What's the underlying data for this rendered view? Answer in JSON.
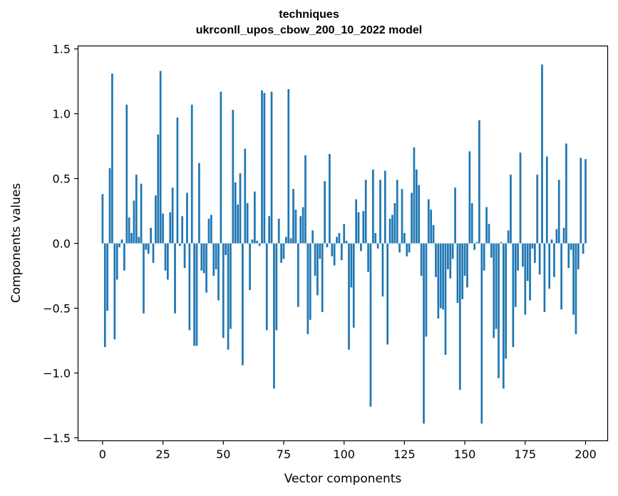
{
  "chart_data": {
    "type": "bar",
    "title": "techniques",
    "subtitle": "ukrconll_upos_cbow_200_10_2022 model",
    "xlabel": "Vector components",
    "ylabel": "Components values",
    "xlim": [
      -10,
      209
    ],
    "ylim": [
      -1.52,
      1.52
    ],
    "xticks": [
      0,
      25,
      50,
      75,
      100,
      125,
      150,
      175,
      200
    ],
    "yticks": [
      -1.5,
      -1.0,
      -0.5,
      0.0,
      0.5,
      1.0,
      1.5
    ],
    "xtick_labels": [
      "0",
      "25",
      "50",
      "75",
      "100",
      "125",
      "150",
      "175",
      "200"
    ],
    "ytick_labels": [
      "−1.5",
      "−1.0",
      "−0.5",
      "0.0",
      "0.5",
      "1.0",
      "1.5"
    ],
    "bar_color": "#1f77b4",
    "grid": false,
    "legend": "none",
    "values": [
      0.38,
      -0.8,
      -0.52,
      0.58,
      1.31,
      -0.74,
      -0.28,
      -0.03,
      0.03,
      -0.21,
      1.07,
      0.2,
      0.08,
      0.33,
      0.53,
      0.05,
      0.46,
      -0.54,
      -0.05,
      -0.08,
      0.12,
      -0.15,
      0.37,
      0.84,
      1.33,
      0.23,
      -0.21,
      -0.28,
      0.24,
      0.43,
      -0.54,
      0.97,
      -0.02,
      0.21,
      -0.19,
      0.39,
      -0.67,
      1.07,
      -0.79,
      -0.79,
      0.62,
      -0.21,
      -0.23,
      -0.38,
      0.19,
      0.22,
      -0.25,
      -0.2,
      -0.44,
      1.17,
      -0.73,
      -0.09,
      -0.82,
      -0.66,
      1.03,
      0.47,
      0.3,
      0.54,
      -0.94,
      0.73,
      0.31,
      -0.36,
      0.03,
      0.4,
      0.02,
      -0.02,
      1.18,
      1.16,
      -0.67,
      0.21,
      1.17,
      -1.12,
      -0.67,
      0.19,
      -0.15,
      -0.12,
      0.05,
      1.19,
      0.04,
      0.42,
      0.26,
      -0.49,
      0.21,
      0.28,
      0.68,
      -0.7,
      -0.59,
      0.1,
      -0.25,
      -0.4,
      -0.12,
      -0.53,
      0.48,
      -0.03,
      0.69,
      -0.1,
      -0.17,
      0.05,
      0.08,
      -0.13,
      0.15,
      0.02,
      -0.82,
      -0.34,
      -0.65,
      0.34,
      0.24,
      -0.06,
      0.25,
      0.49,
      -0.22,
      -1.26,
      0.57,
      0.08,
      -0.04,
      0.49,
      -0.41,
      0.56,
      -0.78,
      0.19,
      0.22,
      0.31,
      0.49,
      -0.07,
      0.42,
      0.08,
      -0.1,
      -0.07,
      0.39,
      0.74,
      0.57,
      0.45,
      -0.25,
      -1.39,
      -0.72,
      0.34,
      0.26,
      0.14,
      -0.26,
      -0.58,
      -0.5,
      -0.51,
      -0.86,
      -0.2,
      -0.27,
      -0.12,
      0.43,
      -0.46,
      -1.13,
      -0.43,
      -0.25,
      -0.34,
      0.71,
      0.31,
      -0.05,
      0.01,
      0.95,
      -1.39,
      -0.21,
      0.28,
      0.15,
      -0.11,
      -0.73,
      -0.66,
      -1.04,
      0.01,
      -1.12,
      -0.89,
      0.1,
      0.53,
      -0.8,
      -0.49,
      -0.21,
      0.7,
      -0.18,
      -0.55,
      -0.29,
      -0.44,
      -0.04,
      -0.15,
      0.53,
      -0.24,
      1.38,
      -0.53,
      0.67,
      -0.35,
      0.03,
      -0.26,
      0.11,
      0.49,
      -0.51,
      0.12,
      0.77,
      -0.19,
      -0.05,
      -0.55,
      -0.7,
      -0.2,
      0.66,
      -0.08,
      0.65
    ]
  }
}
